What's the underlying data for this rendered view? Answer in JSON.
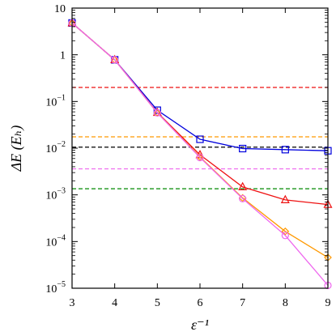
{
  "chart_data": {
    "type": "line",
    "xlabel": "ε⁻¹",
    "ylabel": "ΔE (Eₕ)",
    "xlim": [
      3,
      9
    ],
    "ylim": [
      1e-05,
      10
    ],
    "yscale": "log",
    "grid": false,
    "legend": "none",
    "x_ticks": [
      "3",
      "4",
      "5",
      "6",
      "7",
      "8",
      "9"
    ],
    "y_ticks": [
      {
        "value": 10,
        "label": "10"
      },
      {
        "value": 1,
        "label": "1"
      },
      {
        "value": 0.1,
        "label": "10−1"
      },
      {
        "value": 0.01,
        "label": "10−2"
      },
      {
        "value": 0.001,
        "label": "10−3"
      },
      {
        "value": 0.0001,
        "label": "10−4"
      },
      {
        "value": 1e-05,
        "label": "10−5"
      }
    ],
    "series": [
      {
        "color": "#0000dd",
        "marker": "square",
        "x": [
          3,
          4,
          5,
          6,
          7,
          8,
          9
        ],
        "y": [
          4.8,
          0.78,
          0.065,
          0.0155,
          0.0098,
          0.0093,
          0.0088
        ]
      },
      {
        "color": "#ee1111",
        "marker": "triangle",
        "x": [
          3,
          4,
          5,
          6,
          7,
          8,
          9
        ],
        "y": [
          4.8,
          0.78,
          0.058,
          0.0072,
          0.00148,
          0.00078,
          0.00062
        ]
      },
      {
        "color": "#ff9900",
        "marker": "diamond",
        "x": [
          3,
          4,
          5,
          6,
          7,
          8,
          9
        ],
        "y": [
          4.8,
          0.78,
          0.057,
          0.0065,
          0.00086,
          0.000165,
          4.55e-05
        ]
      },
      {
        "color": "#ee66ee",
        "marker": "circle",
        "x": [
          3,
          4,
          5,
          6,
          7,
          8,
          9
        ],
        "y": [
          4.8,
          0.78,
          0.057,
          0.0063,
          0.00083,
          0.000135,
          1.15e-05
        ]
      }
    ],
    "reference_lines": [
      {
        "color": "#ee1111",
        "y": 0.2
      },
      {
        "color": "#ff9900",
        "y": 0.0175
      },
      {
        "color": "#000000",
        "y": 0.0105
      },
      {
        "color": "#ee66ee",
        "y": 0.0036
      },
      {
        "color": "#008800",
        "y": 0.00135
      }
    ]
  }
}
